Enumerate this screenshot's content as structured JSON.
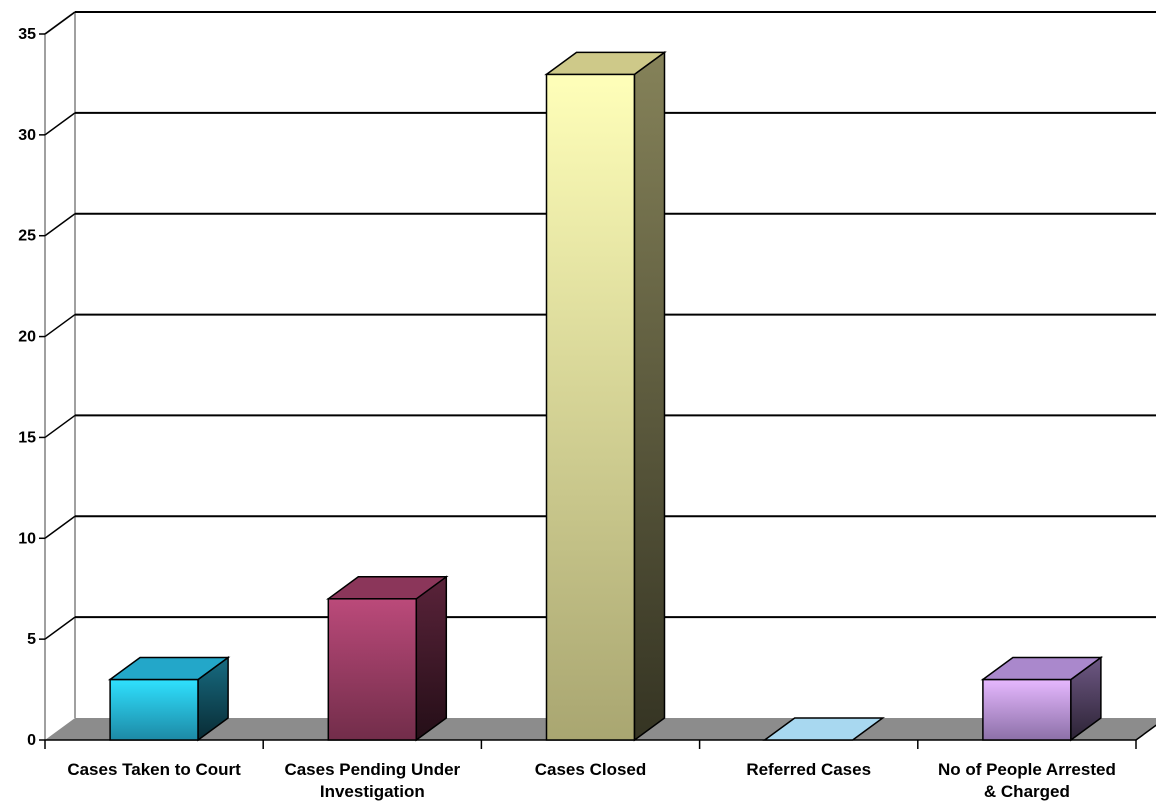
{
  "chart_data": {
    "type": "bar",
    "title": "",
    "xlabel": "",
    "ylabel": "",
    "ylim": [
      0,
      35
    ],
    "yticks": [
      0,
      5,
      10,
      15,
      20,
      25,
      30,
      35
    ],
    "grid": true,
    "style": "3d-column",
    "categories": [
      [
        "Cases Taken to Court"
      ],
      [
        "Cases Pending Under",
        "Investigation"
      ],
      [
        "Cases Closed"
      ],
      [
        "Referred Cases"
      ],
      [
        "No of People Arrested",
        "& Charged"
      ]
    ],
    "values": [
      3,
      7,
      33,
      0,
      3
    ],
    "colors": [
      "#29c4ec",
      "#a3406a",
      "#f2eda1",
      "#a8d8f0",
      "#c8a0f0"
    ]
  }
}
